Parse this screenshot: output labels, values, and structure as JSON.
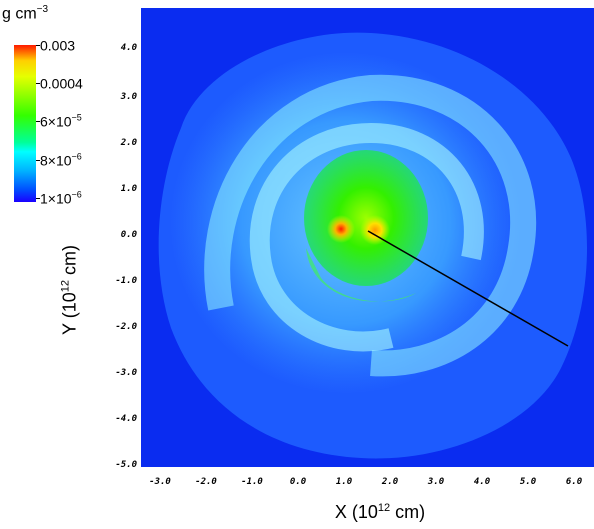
{
  "colorbar": {
    "unit_base": "g cm",
    "unit_exp": "−3",
    "labels": [
      {
        "base": "0.003",
        "exp": ""
      },
      {
        "base": "0.0004",
        "exp": ""
      },
      {
        "base": "6×10",
        "exp": "−5"
      },
      {
        "base": "8×10",
        "exp": "−6"
      },
      {
        "base": "1×10",
        "exp": "−6"
      }
    ]
  },
  "axes": {
    "x_ticks": [
      "-3.0",
      "-2.0",
      "-1.0",
      "0.0",
      "1.0",
      "2.0",
      "3.0",
      "4.0",
      "5.0",
      "6.0"
    ],
    "y_ticks": [
      "4.0",
      "3.0",
      "2.0",
      "1.0",
      "0.0",
      "-1.0",
      "-2.0",
      "-3.0",
      "-4.0",
      "-5.0"
    ],
    "x_label_base": "X (10",
    "x_label_exp": "12",
    "x_label_tail": " cm)",
    "y_label_base": "Y (10",
    "y_label_exp": "12",
    "y_label_tail": " cm)"
  },
  "colors": {
    "background": "#0a2cf0",
    "envelope": "#2f8cff",
    "spiral": "#78e6ff",
    "core": "#33e600",
    "hotspot": "#ff2000"
  }
}
